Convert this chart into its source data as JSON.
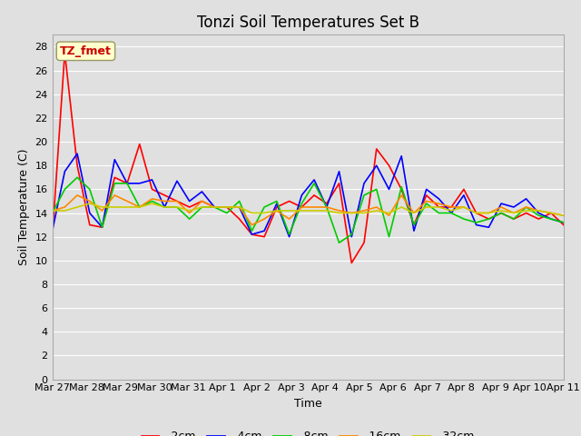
{
  "title": "Tonzi Soil Temperatures Set B",
  "xlabel": "Time",
  "ylabel": "Soil Temperature (C)",
  "annotation": "TZ_fmet",
  "ylim": [
    0,
    29
  ],
  "yticks": [
    0,
    2,
    4,
    6,
    8,
    10,
    12,
    14,
    16,
    18,
    20,
    22,
    24,
    26,
    28
  ],
  "xtick_labels": [
    "Mar 27",
    "Mar 28",
    "Mar 29",
    "Mar 30",
    "Mar 31",
    "Apr 1",
    "Apr 2",
    "Apr 3",
    "Apr 4",
    "Apr 5",
    "Apr 6",
    "Apr 7",
    "Apr 8",
    "Apr 9",
    "Apr 10",
    "Apr 11"
  ],
  "series": {
    "-2cm": {
      "color": "#ff0000",
      "values": [
        12.0,
        27.5,
        18.0,
        13.0,
        12.8,
        17.0,
        16.5,
        19.8,
        16.0,
        15.5,
        15.0,
        14.5,
        15.0,
        14.5,
        14.5,
        13.5,
        12.2,
        12.0,
        14.5,
        15.0,
        14.5,
        15.5,
        14.8,
        16.5,
        9.8,
        11.5,
        19.4,
        18.0,
        16.0,
        13.0,
        15.5,
        14.5,
        14.5,
        16.0,
        14.0,
        13.5,
        14.0,
        13.5,
        14.0,
        13.5,
        14.0,
        13.0
      ]
    },
    "-4cm": {
      "color": "#0000ff",
      "values": [
        12.5,
        17.5,
        19.0,
        14.0,
        12.8,
        18.5,
        16.5,
        16.5,
        16.8,
        14.5,
        16.7,
        15.0,
        15.8,
        14.5,
        14.5,
        14.5,
        12.2,
        12.5,
        14.8,
        12.0,
        15.5,
        16.8,
        14.5,
        17.5,
        12.0,
        16.5,
        18.0,
        16.0,
        18.8,
        12.5,
        16.0,
        15.2,
        14.0,
        15.5,
        13.0,
        12.8,
        14.8,
        14.5,
        15.2,
        14.0,
        13.5,
        13.2
      ]
    },
    "-8cm": {
      "color": "#00cc00",
      "values": [
        14.0,
        16.0,
        17.0,
        16.0,
        12.8,
        16.5,
        16.5,
        14.5,
        15.0,
        14.5,
        14.5,
        13.5,
        14.5,
        14.5,
        14.0,
        15.0,
        12.5,
        14.5,
        15.0,
        12.2,
        14.8,
        16.5,
        14.5,
        11.5,
        12.2,
        15.5,
        16.0,
        12.0,
        16.2,
        13.0,
        14.8,
        14.0,
        14.0,
        13.5,
        13.2,
        13.5,
        14.0,
        13.5,
        14.5,
        13.8,
        13.5,
        13.2
      ]
    },
    "-16cm": {
      "color": "#ff8800",
      "values": [
        14.2,
        14.5,
        15.5,
        15.0,
        14.2,
        15.5,
        15.0,
        14.5,
        15.2,
        15.0,
        15.0,
        14.0,
        15.0,
        14.5,
        14.5,
        14.5,
        13.0,
        13.5,
        14.2,
        13.5,
        14.5,
        14.5,
        14.5,
        14.2,
        14.0,
        14.2,
        14.5,
        13.8,
        15.5,
        14.0,
        15.0,
        14.8,
        14.5,
        14.5,
        14.0,
        14.0,
        14.5,
        14.0,
        14.5,
        14.2,
        14.0,
        13.8
      ]
    },
    "-32cm": {
      "color": "#cccc00",
      "values": [
        14.2,
        14.2,
        14.5,
        14.8,
        14.5,
        14.5,
        14.5,
        14.5,
        14.8,
        14.5,
        14.5,
        14.2,
        14.5,
        14.5,
        14.5,
        14.5,
        14.0,
        14.0,
        14.2,
        14.2,
        14.2,
        14.2,
        14.2,
        14.0,
        14.0,
        14.0,
        14.2,
        14.0,
        14.5,
        14.0,
        14.5,
        14.5,
        14.2,
        14.5,
        14.0,
        14.0,
        14.2,
        14.0,
        14.2,
        14.2,
        14.0,
        13.8
      ]
    }
  },
  "background_color": "#e0e0e0",
  "plot_bg_color": "#e0e0e0",
  "grid_color": "#ffffff",
  "title_fontsize": 12,
  "axis_fontsize": 9,
  "tick_fontsize": 8,
  "legend_fontsize": 9
}
